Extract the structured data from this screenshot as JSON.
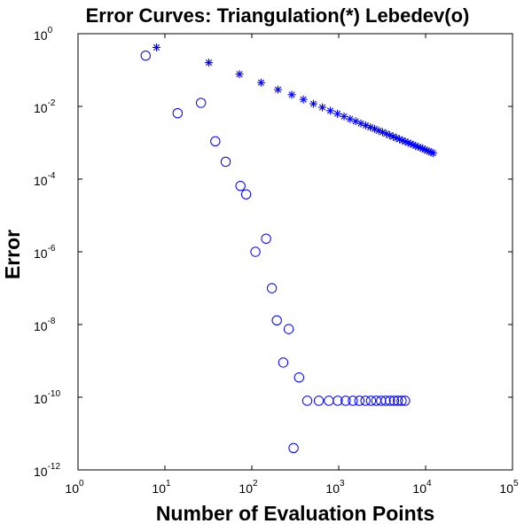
{
  "chart_data": {
    "type": "scatter",
    "title": "Error Curves: Triangulation(*) Lebedev(o)",
    "xlabel": "Number of Evaluation Points",
    "ylabel": "Error",
    "xscale": "log",
    "yscale": "log",
    "xlim": [
      1,
      100000
    ],
    "ylim": [
      1e-12,
      1
    ],
    "x_ticks": [
      {
        "base": "10",
        "exp": "0"
      },
      {
        "base": "10",
        "exp": "1"
      },
      {
        "base": "10",
        "exp": "2"
      },
      {
        "base": "10",
        "exp": "3"
      },
      {
        "base": "10",
        "exp": "4"
      },
      {
        "base": "10",
        "exp": "5"
      }
    ],
    "y_ticks": [
      {
        "base": "10",
        "exp": "0"
      },
      {
        "base": "10",
        "exp": "-2"
      },
      {
        "base": "10",
        "exp": "-4"
      },
      {
        "base": "10",
        "exp": "-6"
      },
      {
        "base": "10",
        "exp": "-8"
      },
      {
        "base": "10",
        "exp": "-10"
      },
      {
        "base": "10",
        "exp": "-12"
      }
    ],
    "grid": false,
    "color": "#0000ff",
    "series": [
      {
        "marker": "star",
        "x": [
          8,
          32,
          72,
          128,
          200,
          288,
          392,
          512,
          648,
          800,
          968,
          1152,
          1352,
          1568,
          1800,
          2048,
          2312,
          2592,
          2888,
          3200,
          3528,
          3872,
          4232,
          4608,
          5000,
          5408,
          5832,
          6272,
          6728,
          7200,
          7688,
          8192,
          8712,
          9248,
          9800,
          10368,
          10952,
          11552,
          12168
        ],
        "y": [
          0.42,
          0.16,
          0.077,
          0.045,
          0.029,
          0.021,
          0.0155,
          0.0118,
          0.0094,
          0.0076,
          0.0063,
          0.0053,
          0.0045,
          0.0039,
          0.0034,
          0.003,
          0.00268,
          0.0024,
          0.00216,
          0.00195,
          0.00177,
          0.00161,
          0.00148,
          0.00136,
          0.00125,
          0.00116,
          0.00108,
          0.001,
          0.00094,
          0.00088,
          0.00082,
          0.00077,
          0.00073,
          0.00069,
          0.00065,
          0.00061,
          0.00058,
          0.00055,
          0.00052
        ]
      },
      {
        "marker": "circle",
        "x": [
          6,
          14,
          26,
          38,
          50,
          74,
          86,
          110,
          146,
          170,
          194,
          230,
          266,
          302,
          350,
          434,
          590,
          770,
          974,
          1202,
          1454,
          1730,
          2030,
          2354,
          2702,
          3074,
          3470,
          3890,
          4334,
          4802,
          5294,
          5810
        ],
        "y": [
          0.25,
          0.0065,
          0.0125,
          0.0011,
          0.0003,
          6.5e-05,
          3.8e-05,
          1e-06,
          2.3e-06,
          1e-07,
          1.3e-08,
          9e-10,
          7.5e-09,
          4e-12,
          3.5e-10,
          8e-11,
          8e-11,
          8e-11,
          8e-11,
          8e-11,
          8e-11,
          8e-11,
          8e-11,
          8e-11,
          8e-11,
          8e-11,
          8e-11,
          8e-11,
          8e-11,
          8e-11,
          8e-11,
          8e-11
        ]
      }
    ]
  }
}
